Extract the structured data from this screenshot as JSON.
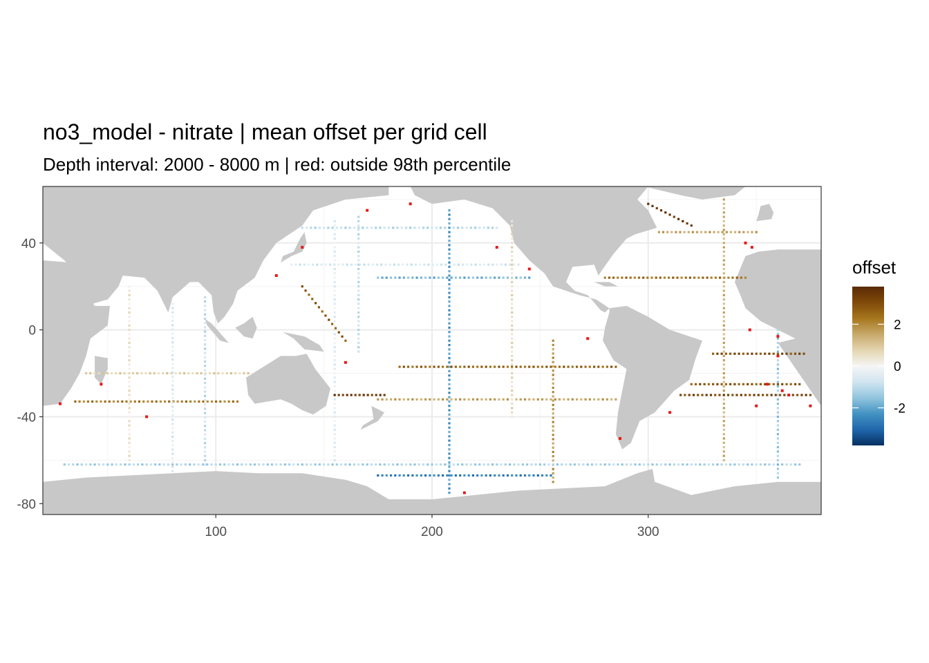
{
  "chart_data": {
    "type": "heatmap",
    "title": "no3_model - nitrate  | mean offset per grid cell",
    "subtitle": "Depth interval: 2000 - 8000 m | red: outside 98th percentile",
    "xlabel": "",
    "ylabel": "",
    "xlim": [
      20,
      380
    ],
    "ylim": [
      -85,
      66
    ],
    "x_ticks": [
      100,
      200,
      300
    ],
    "x_tick_labels": [
      "100",
      "200",
      "300"
    ],
    "y_ticks": [
      -80,
      -40,
      0,
      40
    ],
    "y_tick_labels": [
      "-80",
      "-40",
      "0",
      "40"
    ],
    "grid": true,
    "legend": {
      "title": "offset",
      "position": "right",
      "range": [
        -3.8,
        3.8
      ],
      "ticks": [
        2,
        0,
        -2
      ],
      "tick_labels": [
        "2",
        "0",
        "-2"
      ],
      "colors": [
        "#053061",
        "#2166ac",
        "#4393c3",
        "#92c5de",
        "#d1e5f0",
        "#f5f5f5",
        "#e3d5b0",
        "#c7a96b",
        "#a6761d",
        "#7f4a09",
        "#5a2a05"
      ]
    },
    "colors": {
      "land": "#c8c8c8",
      "ocean": "#ffffff",
      "outlier": "#e41a1c",
      "panel_border": "#333333",
      "grid": "#ebebeb"
    },
    "tracks": [
      {
        "name": "N Pacific 47N",
        "from": [
          140,
          47
        ],
        "to": [
          230,
          47
        ],
        "value": -1.0
      },
      {
        "name": "N Pacific 30N",
        "from": [
          135,
          30
        ],
        "to": [
          240,
          30
        ],
        "value": -0.6
      },
      {
        "name": "N Pacific 24N",
        "from": [
          175,
          24
        ],
        "to": [
          245,
          24
        ],
        "value": -1.8
      },
      {
        "name": "180W line",
        "from": [
          208,
          -75
        ],
        "to": [
          208,
          55
        ],
        "value": -2.2
      },
      {
        "name": "165E line",
        "from": [
          166,
          52
        ],
        "to": [
          166,
          -10
        ],
        "value": -0.9
      },
      {
        "name": "155E line",
        "from": [
          155,
          50
        ],
        "to": [
          155,
          -60
        ],
        "value": -0.4
      },
      {
        "name": "S Pacific 17S",
        "from": [
          185,
          -17
        ],
        "to": [
          285,
          -17
        ],
        "value": 2.6
      },
      {
        "name": "S Pacific 32S",
        "from": [
          175,
          -32
        ],
        "to": [
          285,
          -32
        ],
        "value": 1.6
      },
      {
        "name": "Tasman 30S",
        "from": [
          155,
          -30
        ],
        "to": [
          178,
          -30
        ],
        "value": 3.4
      },
      {
        "name": "150W line",
        "from": [
          256,
          -70
        ],
        "to": [
          256,
          -5
        ],
        "value": 1.8
      },
      {
        "name": "130W line",
        "from": [
          237,
          50
        ],
        "to": [
          237,
          -40
        ],
        "value": 0.6
      },
      {
        "name": "Antarctic circumpolar",
        "from": [
          175,
          -67
        ],
        "to": [
          255,
          -67
        ],
        "value": -2.6
      },
      {
        "name": "Southern Ocean 62S",
        "from": [
          30,
          -62
        ],
        "to": [
          370,
          -62
        ],
        "value": -1.2
      },
      {
        "name": "Indian 20S",
        "from": [
          40,
          -20
        ],
        "to": [
          115,
          -20
        ],
        "value": 0.8
      },
      {
        "name": "Indian 32S",
        "from": [
          35,
          -33
        ],
        "to": [
          110,
          -33
        ],
        "value": 2.2
      },
      {
        "name": "Indian 80E",
        "from": [
          80,
          12
        ],
        "to": [
          80,
          -65
        ],
        "value": -0.5
      },
      {
        "name": "Indian 95E",
        "from": [
          95,
          15
        ],
        "to": [
          95,
          -62
        ],
        "value": -0.9
      },
      {
        "name": "Indian 60E",
        "from": [
          60,
          20
        ],
        "to": [
          60,
          -60
        ],
        "value": 0.4
      },
      {
        "name": "Atlantic 24N",
        "from": [
          280,
          24
        ],
        "to": [
          345,
          24
        ],
        "value": 2.4
      },
      {
        "name": "Atlantic 45N",
        "from": [
          305,
          45
        ],
        "to": [
          350,
          45
        ],
        "value": 1.6
      },
      {
        "name": "Labrador",
        "from": [
          300,
          58
        ],
        "to": [
          320,
          48
        ],
        "value": 3.6
      },
      {
        "name": "Atlantic 25W",
        "from": [
          335,
          60
        ],
        "to": [
          335,
          -60
        ],
        "value": 1.4
      },
      {
        "name": "S Atlantic 30S",
        "from": [
          315,
          -30
        ],
        "to": [
          375,
          -30
        ],
        "value": 3.2
      },
      {
        "name": "S Atlantic 25S",
        "from": [
          320,
          -25
        ],
        "to": [
          370,
          -25
        ],
        "value": 2.8
      },
      {
        "name": "S Atlantic 11S",
        "from": [
          330,
          -11
        ],
        "to": [
          372,
          -11
        ],
        "value": 3.0
      },
      {
        "name": "Greenwich",
        "from": [
          360,
          -68
        ],
        "to": [
          360,
          0
        ],
        "value": -1.4
      },
      {
        "name": "Indonesia seas",
        "from": [
          140,
          20
        ],
        "to": [
          160,
          -5
        ],
        "value": 2.8
      }
    ],
    "outliers": [
      [
        170,
        55
      ],
      [
        190,
        58
      ],
      [
        230,
        38
      ],
      [
        245,
        28
      ],
      [
        140,
        38
      ],
      [
        128,
        25
      ],
      [
        345,
        40
      ],
      [
        348,
        38
      ],
      [
        360,
        -12
      ],
      [
        362,
        -28
      ],
      [
        365,
        -30
      ],
      [
        355,
        -25
      ],
      [
        350,
        -35
      ],
      [
        272,
        -4
      ],
      [
        28,
        -34
      ],
      [
        47,
        -25
      ],
      [
        68,
        -40
      ],
      [
        160,
        -15
      ],
      [
        287,
        -50
      ],
      [
        310,
        -38
      ],
      [
        375,
        -35
      ],
      [
        215,
        -75
      ],
      [
        360,
        -3
      ],
      [
        347,
        0
      ]
    ]
  }
}
